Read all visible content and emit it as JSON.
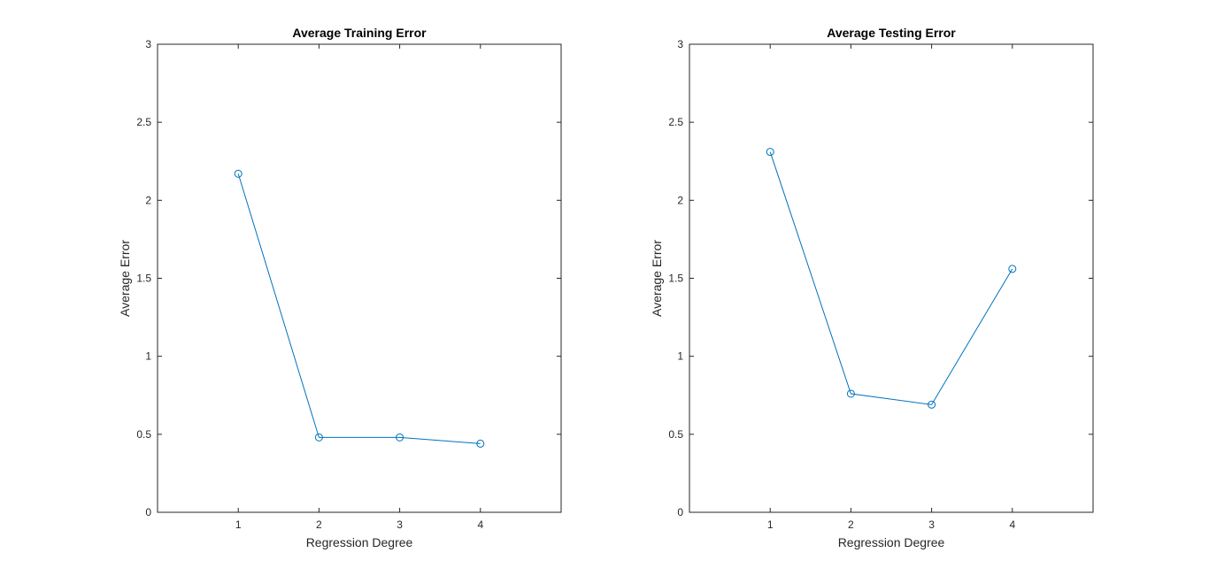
{
  "chart_data": [
    {
      "type": "line",
      "title": "Average Training Error",
      "xlabel": "Regression Degree",
      "ylabel": "Average Error",
      "xlim": [
        0,
        5
      ],
      "ylim": [
        0,
        3
      ],
      "xticks": [
        1,
        2,
        3,
        4
      ],
      "yticks": [
        0,
        0.5,
        1,
        1.5,
        2,
        2.5,
        3
      ],
      "x": [
        1,
        2,
        3,
        4
      ],
      "values": [
        2.17,
        0.48,
        0.48,
        0.44
      ],
      "marker": "circle",
      "color": "#0072bd",
      "grid": false
    },
    {
      "type": "line",
      "title": "Average Testing Error",
      "xlabel": "Regression Degree",
      "ylabel": "Average Error",
      "xlim": [
        0,
        5
      ],
      "ylim": [
        0,
        3
      ],
      "xticks": [
        1,
        2,
        3,
        4
      ],
      "yticks": [
        0,
        0.5,
        1,
        1.5,
        2,
        2.5,
        3
      ],
      "x": [
        1,
        2,
        3,
        4
      ],
      "values": [
        2.31,
        0.76,
        0.69,
        1.56
      ],
      "marker": "circle",
      "color": "#0072bd",
      "grid": false
    }
  ]
}
